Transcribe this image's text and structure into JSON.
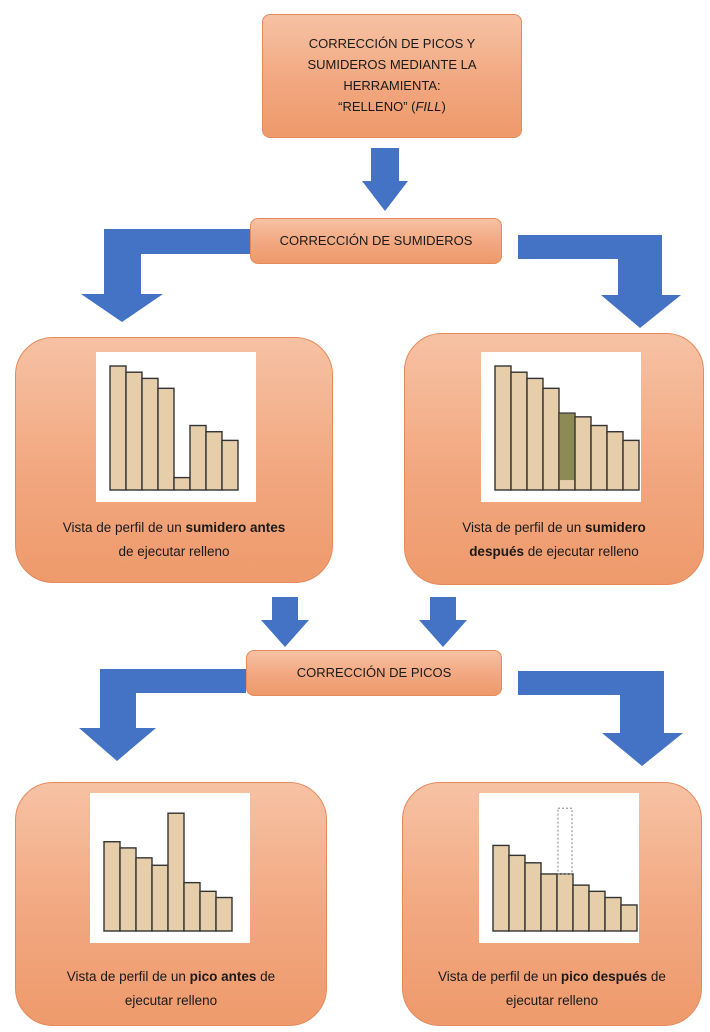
{
  "title": {
    "line1": "CORRECCIÓN DE PICOS Y",
    "line2": "SUMIDEROS MEDIANTE LA",
    "line3": "HERRAMIENTA:",
    "line4_prefix": "“RELLENO” (",
    "line4_italic": "FILL",
    "line4_suffix": ")"
  },
  "sink_label": "CORRECCIÓN DE SUMIDEROS",
  "peak_label": "CORRECCIÓN DE PICOS",
  "panels": {
    "sink_before": {
      "t1": "Vista de perfil de un ",
      "b1": "sumidero antes",
      "t2": "de ejecutar relleno"
    },
    "sink_after": {
      "t1": "Vista de perfil de un ",
      "b1": "sumidero",
      "b2": "después",
      "t2": " de ejecutar relleno"
    },
    "peak_before": {
      "t1": "Vista de perfil de un ",
      "b1": "pico antes",
      "t2": " de",
      "t3": "ejecutar relleno"
    },
    "peak_after": {
      "t1": "Vista de perfil de un ",
      "b1": "pico después",
      "t2": " de",
      "t3": "ejecutar relleno"
    }
  },
  "colors": {
    "box_fill": "#f2a77f",
    "box_border": "#e48a5c",
    "arrow": "#4472c4",
    "bar_fill": "#e6ceab",
    "bar_stroke": "#333333",
    "fill_added": "#8e8a55",
    "outline_dotted": "#9a9a9a"
  },
  "chart_data": [
    {
      "id": "sink_before",
      "type": "bar",
      "values": [
        10,
        9.5,
        9,
        8.2,
        1,
        5.2,
        4.7,
        4
      ]
    },
    {
      "id": "sink_after",
      "type": "bar",
      "values": [
        10,
        9.5,
        9,
        8.2,
        6.2,
        5.9,
        5.2,
        4.7,
        4
      ],
      "filled_index": 4,
      "filled_from": 0.8
    },
    {
      "id": "peak_before",
      "type": "bar",
      "values": [
        7.2,
        6.7,
        5.9,
        5.3,
        9.5,
        3.9,
        3.2,
        2.7
      ]
    },
    {
      "id": "peak_after",
      "type": "bar",
      "values": [
        6.9,
        6.1,
        5.5,
        4.6,
        4.6,
        3.7,
        3.2,
        2.7,
        2.1
      ],
      "removed_index": 4,
      "removed_to": 9.9
    }
  ]
}
